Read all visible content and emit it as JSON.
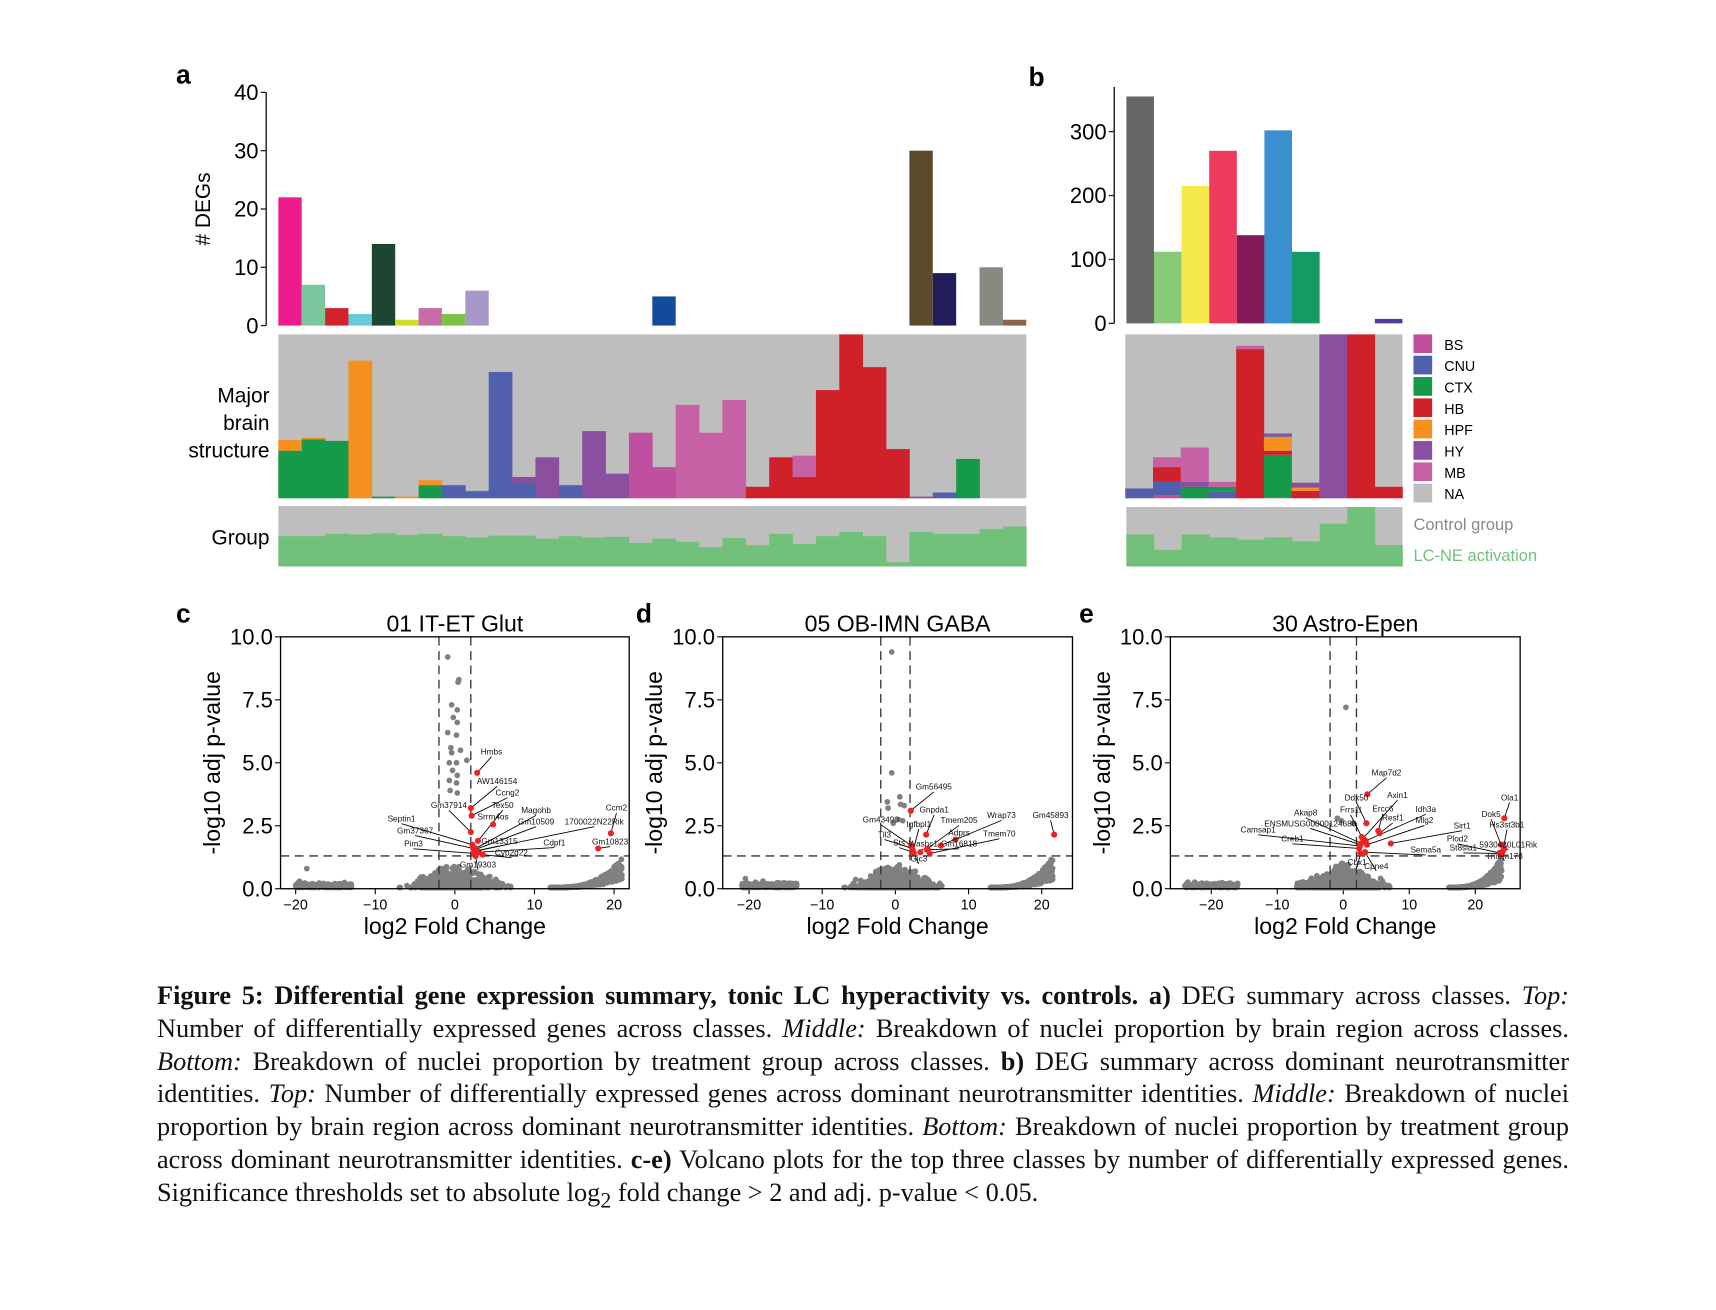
{
  "panel_labels": {
    "a": "a",
    "b": "b",
    "c": "c",
    "d": "d",
    "e": "e"
  },
  "region_colors": {
    "BS": "#c04f9f",
    "CNU": "#5160ad",
    "CTX": "#149a48",
    "HB": "#d0202a",
    "HPF": "#f6901e",
    "HY": "#8a4f9f",
    "MB": "#c561a4",
    "NA": "#bebebe"
  },
  "group_colors": {
    "control": "#bebebe",
    "lcne": "#71c17a"
  },
  "chart_data": [
    {
      "id": "a_top",
      "type": "bar",
      "ylabel": "# DEGs",
      "ylim": [
        0,
        40
      ],
      "yticks": [
        0,
        10,
        20,
        30,
        40
      ],
      "values": [
        22,
        7,
        3,
        2,
        14,
        1,
        3,
        2,
        6,
        0,
        0,
        0,
        0,
        0,
        0,
        0,
        5,
        0,
        0,
        0,
        0,
        0,
        0,
        0,
        0,
        0,
        0,
        30,
        9,
        0,
        10,
        1
      ],
      "colors": [
        "#ee1b8c",
        "#79c79b",
        "#d2222d",
        "#67cad8",
        "#1c4632",
        "#cfdc2b",
        "#c86ca9",
        "#7dc242",
        "#a699c9",
        "",
        "",
        "",
        "",
        "",
        "",
        "",
        "#134b9c",
        "",
        "",
        "",
        "",
        "",
        "",
        "",
        "",
        "",
        "",
        "#5c4b2b",
        "#211d5a",
        "",
        "#888a80",
        "#8b6446"
      ]
    },
    {
      "id": "a_middle",
      "type": "stacked-bar",
      "ylabel": "Major brain structure",
      "stacks": [
        [
          [
            "CTX",
            0.29
          ],
          [
            "HPF",
            0.065
          ]
        ],
        [
          [
            "CTX",
            0.36
          ],
          [
            "HPF",
            0.01
          ]
        ],
        [
          [
            "CTX",
            0.35
          ]
        ],
        [
          [
            "HPF",
            0.84
          ]
        ],
        [
          [
            "CTX",
            0.01
          ]
        ],
        [
          [
            "HPF",
            0.01
          ]
        ],
        [
          [
            "CTX",
            0.08
          ],
          [
            "HPF",
            0.03
          ]
        ],
        [
          [
            "CNU",
            0.08
          ]
        ],
        [
          [
            "CNU",
            0.04
          ],
          [
            "CTX",
            0.005
          ]
        ],
        [
          [
            "CNU",
            0.77
          ]
        ],
        [
          [
            "CNU",
            0.09
          ],
          [
            "HY",
            0.04
          ]
        ],
        [
          [
            "HY",
            0.25
          ]
        ],
        [
          [
            "CNU",
            0.08
          ]
        ],
        [
          [
            "HY",
            0.41
          ]
        ],
        [
          [
            "HY",
            0.15
          ]
        ],
        [
          [
            "BS",
            0.4
          ]
        ],
        [
          [
            "BS",
            0.19
          ]
        ],
        [
          [
            "MB",
            0.57
          ]
        ],
        [
          [
            "MB",
            0.4
          ]
        ],
        [
          [
            "MB",
            0.6
          ]
        ],
        [
          [
            "HB",
            0.07
          ]
        ],
        [
          [
            "HB",
            0.25
          ]
        ],
        [
          [
            "HB",
            0.13
          ],
          [
            "MB",
            0.13
          ]
        ],
        [
          [
            "HB",
            0.66
          ]
        ],
        [
          [
            "HB",
            1.0
          ]
        ],
        [
          [
            "HB",
            0.8
          ]
        ],
        [
          [
            "HB",
            0.3
          ]
        ],
        [
          [
            "HY",
            0.01
          ]
        ],
        [
          [
            "CNU",
            0.035
          ]
        ],
        [
          [
            "CTX",
            0.24
          ]
        ],
        [],
        []
      ]
    },
    {
      "id": "a_bottom",
      "type": "stacked-bar",
      "ylabel": "Group",
      "lcne_fraction": [
        0.5,
        0.5,
        0.54,
        0.53,
        0.55,
        0.52,
        0.54,
        0.5,
        0.48,
        0.51,
        0.51,
        0.46,
        0.5,
        0.48,
        0.49,
        0.39,
        0.46,
        0.41,
        0.32,
        0.47,
        0.35,
        0.54,
        0.37,
        0.5,
        0.57,
        0.5,
        0.07,
        0.57,
        0.54,
        0.54,
        0.62,
        0.66
      ]
    },
    {
      "id": "b_top",
      "type": "bar",
      "ylim": [
        0,
        370
      ],
      "yticks": [
        0,
        100,
        200,
        300
      ],
      "values": [
        355,
        112,
        215,
        270,
        138,
        302,
        112,
        0,
        0,
        7
      ],
      "colors": [
        "#676767",
        "#88c97a",
        "#f6ea4b",
        "#ec3b5d",
        "#821a57",
        "#3a8fd0",
        "#149b65",
        "",
        "",
        "#553c96"
      ]
    },
    {
      "id": "b_middle",
      "type": "stacked-bar",
      "stacks": [
        [
          [
            "CNU",
            0.06
          ]
        ],
        [
          [
            "BS",
            0.02
          ],
          [
            "CNU",
            0.08
          ],
          [
            "HB",
            0.09
          ],
          [
            "MB",
            0.06
          ]
        ],
        [
          [
            "CTX",
            0.07
          ],
          [
            "HY",
            0.03
          ],
          [
            "MB",
            0.21
          ]
        ],
        [
          [
            "CNU",
            0.04
          ],
          [
            "CTX",
            0.03
          ],
          [
            "MB",
            0.03
          ]
        ],
        [
          [
            "HB",
            0.91
          ],
          [
            "MB",
            0.02
          ]
        ],
        [
          [
            "BS",
            0.005
          ],
          [
            "CTX",
            0.26
          ],
          [
            "HB",
            0.025
          ],
          [
            "HPF",
            0.085
          ],
          [
            "CNU",
            0.01
          ],
          [
            "HY",
            0.01
          ]
        ],
        [
          [
            "HB",
            0.045
          ],
          [
            "HPF",
            0.02
          ],
          [
            "HY",
            0.03
          ]
        ],
        [
          [
            "HY",
            1.0
          ]
        ],
        [
          [
            "HB",
            1.0
          ]
        ],
        [
          [
            "HB",
            0.07
          ]
        ]
      ]
    },
    {
      "id": "b_bottom",
      "type": "stacked-bar",
      "lcne_fraction": [
        0.54,
        0.28,
        0.54,
        0.49,
        0.45,
        0.49,
        0.42,
        0.72,
        1.0,
        0.36
      ]
    },
    {
      "id": "c",
      "type": "scatter",
      "title": "01 IT-ET Glut",
      "xlabel": "log2 Fold Change",
      "ylabel": "-log10 adj p-value",
      "xlim": [
        -21.9,
        21.9
      ],
      "ylim": [
        0,
        10
      ],
      "xticks": [
        -20,
        -10,
        0,
        10,
        20
      ],
      "yticks": [
        "0.0",
        "2.5",
        "5.0",
        "7.5",
        "10.0"
      ],
      "thresholds": {
        "log2fc": 2,
        "neg_log10_p": 1.301
      },
      "gray_outliers": [
        [
          -0.9,
          9.2
        ],
        [
          0.5,
          8.3
        ],
        [
          0.4,
          8.2
        ],
        [
          -0.4,
          7.3
        ],
        [
          0.3,
          7.1
        ],
        [
          -0.2,
          6.8
        ],
        [
          0.3,
          6.6
        ],
        [
          -0.9,
          6.2
        ],
        [
          0.2,
          6.1
        ],
        [
          -0.5,
          5.6
        ],
        [
          -0.4,
          5.4
        ],
        [
          0.7,
          5.5
        ],
        [
          -0.7,
          5.0
        ],
        [
          0.2,
          5.0
        ],
        [
          1.5,
          5.1
        ],
        [
          -0.3,
          4.7
        ],
        [
          0.3,
          4.5
        ],
        [
          -0.7,
          4.3
        ],
        [
          0.2,
          4.2
        ],
        [
          -0.6,
          3.9
        ],
        [
          0.3,
          3.8
        ],
        [
          -18.6,
          0.8
        ]
      ],
      "cloud": {
        "left": [
          -20,
          -13
        ],
        "center_sd": 2.4,
        "right": [
          12,
          21
        ]
      },
      "genes": [
        {
          "name": "Hmbs",
          "x": 2.8,
          "y": 4.6
        },
        {
          "name": "AW146154",
          "x": 2.0,
          "y": 3.2
        },
        {
          "name": "Ccng2",
          "x": 2.1,
          "y": 2.9
        },
        {
          "name": "Gm37914",
          "x": 2.0,
          "y": 2.25
        },
        {
          "name": "Tex50",
          "x": 2.9,
          "y": 1.9
        },
        {
          "name": "Srrm4os",
          "x": 4.8,
          "y": 2.55
        },
        {
          "name": "Magohb",
          "x": 2.6,
          "y": 1.6
        },
        {
          "name": "Gm10509",
          "x": 2.5,
          "y": 1.55
        },
        {
          "name": "1700022N22Rik",
          "x": 2.6,
          "y": 1.5
        },
        {
          "name": "Ccm2",
          "x": 19.6,
          "y": 2.2
        },
        {
          "name": "Septin1",
          "x": 2.2,
          "y": 1.75
        },
        {
          "name": "Gm37367",
          "x": 2.3,
          "y": 1.6
        },
        {
          "name": "Pim3",
          "x": 2.4,
          "y": 1.4
        },
        {
          "name": "Cdpf1",
          "x": 3.0,
          "y": 1.45
        },
        {
          "name": "Gm10823",
          "x": 18.0,
          "y": 1.6
        },
        {
          "name": "Cyp2d22",
          "x": 3.5,
          "y": 1.35
        },
        {
          "name": "Gm19303",
          "x": 2.6,
          "y": 1.3
        },
        {
          "name": "Gm13315",
          "x": 2.7,
          "y": 1.5
        }
      ]
    },
    {
      "id": "d",
      "type": "scatter",
      "title": "05 OB-IMN GABA",
      "xlabel": "log2 Fold Change",
      "ylabel": "-log10 adj p-value",
      "xlim": [
        -23.6,
        24.2
      ],
      "ylim": [
        0,
        10
      ],
      "xticks": [
        -20,
        -10,
        0,
        10,
        20
      ],
      "yticks": [
        "0.0",
        "2.5",
        "5.0",
        "7.5",
        "10.0"
      ],
      "thresholds": {
        "log2fc": 2,
        "neg_log10_p": 1.301
      },
      "gray_outliers": [
        [
          -0.5,
          9.4
        ],
        [
          -0.5,
          4.6
        ],
        [
          0.6,
          3.65
        ],
        [
          -1.1,
          3.45
        ],
        [
          0.7,
          3.35
        ],
        [
          1.2,
          3.3
        ],
        [
          -1.0,
          3.2
        ],
        [
          0.4,
          2.75
        ],
        [
          1.0,
          2.7
        ],
        [
          -0.3,
          2.6
        ],
        [
          -20.5,
          0.4
        ]
      ],
      "cloud": {
        "left": [
          -21,
          -13.5
        ],
        "center_sd": 2.3,
        "right": [
          13,
          21.5
        ]
      },
      "genes": [
        {
          "name": "Gm56495",
          "x": 2.1,
          "y": 3.1
        },
        {
          "name": "Gnpda1",
          "x": 4.2,
          "y": 2.15
        },
        {
          "name": "Wrap73",
          "x": 8.2,
          "y": 1.95
        },
        {
          "name": "Adprs",
          "x": 6.2,
          "y": 1.72
        },
        {
          "name": "Tmem205",
          "x": 4.4,
          "y": 1.6
        },
        {
          "name": "Gm45893",
          "x": 21.7,
          "y": 2.15
        },
        {
          "name": "Tmem70",
          "x": 4.7,
          "y": 1.4
        },
        {
          "name": "Gm43490",
          "x": 2.15,
          "y": 1.72
        },
        {
          "name": "Igfbpl1",
          "x": 2.4,
          "y": 1.5
        },
        {
          "name": "Tll3",
          "x": 2.3,
          "y": 1.6
        },
        {
          "name": "Sts",
          "x": 2.4,
          "y": 1.45
        },
        {
          "name": "Washc1",
          "x": 3.4,
          "y": 1.45
        },
        {
          "name": "Gm16818",
          "x": 4.3,
          "y": 1.55
        },
        {
          "name": "Gjc3",
          "x": 2.5,
          "y": 1.4
        }
      ]
    },
    {
      "id": "e",
      "type": "scatter",
      "title": "30 Astro-Epen",
      "xlabel": "log2 Fold Change",
      "ylabel": "-log10 adj p-value",
      "xlim": [
        -26.2,
        26.8
      ],
      "ylim": [
        0,
        10
      ],
      "xticks": [
        -20,
        -10,
        0,
        10,
        20
      ],
      "yticks": [
        "0.0",
        "2.5",
        "5.0",
        "7.5",
        "10.0"
      ],
      "thresholds": {
        "log2fc": 2,
        "neg_log10_p": 1.301
      },
      "gray_outliers": [
        [
          0.4,
          7.2
        ],
        [
          -0.9,
          2.8
        ],
        [
          -0.3,
          2.7
        ],
        [
          1.5,
          2.6
        ],
        [
          -23.5,
          0.2
        ]
      ],
      "cloud": {
        "left": [
          -24,
          -16
        ],
        "center_sd": 2.6,
        "right": [
          16,
          24
        ]
      },
      "genes": [
        {
          "name": "Map7d2",
          "x": 3.65,
          "y": 3.75
        },
        {
          "name": "Ddx50",
          "x": 3.5,
          "y": 2.6
        },
        {
          "name": "Axin1",
          "x": 3.0,
          "y": 2.0
        },
        {
          "name": "Ercc6",
          "x": 5.3,
          "y": 2.3
        },
        {
          "name": "Frrs1l",
          "x": 2.8,
          "y": 2.05
        },
        {
          "name": "Idh3a",
          "x": 3.4,
          "y": 1.9
        },
        {
          "name": "Akap8",
          "x": 2.7,
          "y": 1.8
        },
        {
          "name": "Resf1",
          "x": 5.5,
          "y": 2.2
        },
        {
          "name": "Mlg2",
          "x": 3.6,
          "y": 1.75
        },
        {
          "name": "ENSMUSG00000124680",
          "x": 2.6,
          "y": 1.75
        },
        {
          "name": "Camsap1",
          "x": 2.5,
          "y": 1.7
        },
        {
          "name": "Creb1",
          "x": 2.4,
          "y": 1.6
        },
        {
          "name": "Sirt1",
          "x": 7.2,
          "y": 1.8
        },
        {
          "name": "Sema5a",
          "x": 3.3,
          "y": 1.45
        },
        {
          "name": "Cbx1",
          "x": 2.6,
          "y": 1.4
        },
        {
          "name": "Cpne4",
          "x": 3.3,
          "y": 1.45
        },
        {
          "name": "Ola1",
          "x": 24.4,
          "y": 2.8
        },
        {
          "name": "Dok5",
          "x": 23.9,
          "y": 1.75
        },
        {
          "name": "Hs3st3b1",
          "x": 24.2,
          "y": 1.5
        },
        {
          "name": "5930430L01Rik",
          "x": 24.4,
          "y": 1.6
        },
        {
          "name": "Plod2",
          "x": 23.7,
          "y": 1.42
        },
        {
          "name": "St8sia1",
          "x": 23.8,
          "y": 1.4
        },
        {
          "name": "Tmem173",
          "x": 24.0,
          "y": 1.35
        }
      ]
    }
  ],
  "legend": {
    "regions": [
      "BS",
      "CNU",
      "CTX",
      "HB",
      "HPF",
      "HY",
      "MB",
      "NA"
    ],
    "groups": [
      "Control group",
      "LC-NE activation"
    ]
  },
  "labels": {
    "degs_axis": "# DEGs",
    "major_brain_structure": [
      "Major",
      "brain",
      "structure"
    ],
    "group": "Group"
  },
  "caption": [
    {
      "t": "Figure 5: Differential gene expression summary, tonic LC hyperactivity vs. controls.",
      "s": "b"
    },
    {
      "t": " ",
      "s": ""
    },
    {
      "t": "a)",
      "s": "b"
    },
    {
      "t": " DEG summary across classes. ",
      "s": ""
    },
    {
      "t": "Top:",
      "s": "i"
    },
    {
      "t": " Number of differentially expressed genes across classes. ",
      "s": ""
    },
    {
      "t": "Middle:",
      "s": "i"
    },
    {
      "t": " Breakdown of nuclei proportion by brain region across classes. ",
      "s": ""
    },
    {
      "t": "Bottom:",
      "s": "i"
    },
    {
      "t": " Breakdown of nuclei proportion by treatment group across classes. ",
      "s": ""
    },
    {
      "t": "b)",
      "s": "b"
    },
    {
      "t": " DEG summary across dominant neurotransmitter identities. ",
      "s": ""
    },
    {
      "t": "Top:",
      "s": "i"
    },
    {
      "t": " Number of differentially expressed genes across dominant neurotransmitter identities. ",
      "s": ""
    },
    {
      "t": "Middle:",
      "s": "i"
    },
    {
      "t": " Breakdown of nuclei proportion by brain region across dominant neurotransmitter identities. ",
      "s": ""
    },
    {
      "t": "Bottom:",
      "s": "i"
    },
    {
      "t": " Breakdown of nuclei proportion by treatment group across dominant neurotransmitter identities. ",
      "s": ""
    },
    {
      "t": "c-e)",
      "s": "b"
    },
    {
      "t": " Volcano plots for the top three classes by number of differentially expressed genes. Significance thresholds set to absolute log",
      "s": ""
    },
    {
      "t": "2",
      "s": "sub"
    },
    {
      "t": " fold change > 2 and adj. p-value < 0.05.",
      "s": ""
    }
  ]
}
